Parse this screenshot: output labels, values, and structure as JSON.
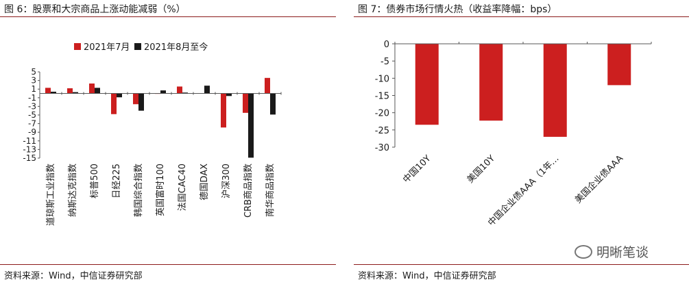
{
  "left_panel": {
    "title": "图 6：股票和大宗商品上涨动能减弱（%）",
    "source": "资料来源：Wind，中信证券研究部"
  },
  "right_panel": {
    "title": "图 7：债券市场行情火热（收益率降幅：bps）",
    "source": "资料来源：Wind，中信证券研究部"
  },
  "watermark": {
    "text": "明晰笔谈",
    "icon": "wechat-icon"
  },
  "colors": {
    "red": "#cc1f1f",
    "black": "#1a1a1a",
    "rule": "#8b1a1a"
  },
  "chart_data": [
    {
      "type": "bar",
      "categories": [
        "道琼斯工业指数",
        "纳斯达克指数",
        "标普500",
        "日经225",
        "韩国综合指数",
        "英国富时100",
        "法国CAC40",
        "德国DAX",
        "沪深300",
        "CRB商品指数",
        "南华商品指数"
      ],
      "series": [
        {
          "name": "2021年7月",
          "color": "#cc1f1f",
          "values": [
            1.3,
            1.2,
            2.3,
            -4.8,
            -2.5,
            -0.1,
            1.6,
            0.0,
            -7.9,
            -4.5,
            3.6
          ]
        },
        {
          "name": "2021年8月至今",
          "color": "#1a1a1a",
          "values": [
            0.4,
            0.3,
            1.3,
            -0.9,
            -4.0,
            0.7,
            0.2,
            1.8,
            -0.6,
            -14.9,
            -4.9
          ]
        }
      ],
      "yticks": [
        "5",
        "3",
        "1",
        "-1",
        "-3",
        "-5",
        "-7",
        "-9",
        "-11",
        "-13",
        "-15"
      ],
      "ylim": [
        -15,
        5
      ],
      "legend": "top"
    },
    {
      "type": "bar",
      "categories": [
        "中国10Y",
        "美国10Y",
        "中国企业债AAA（1年…",
        "美国企业债AAA"
      ],
      "series": [
        {
          "color": "#cc1f1f",
          "values": [
            -23.5,
            -22.3,
            -27.0,
            -12.0
          ]
        }
      ],
      "yticks": [
        "0",
        "-5",
        "-10",
        "-15",
        "-20",
        "-25",
        "-30"
      ],
      "ylim": [
        -30,
        0
      ]
    }
  ]
}
